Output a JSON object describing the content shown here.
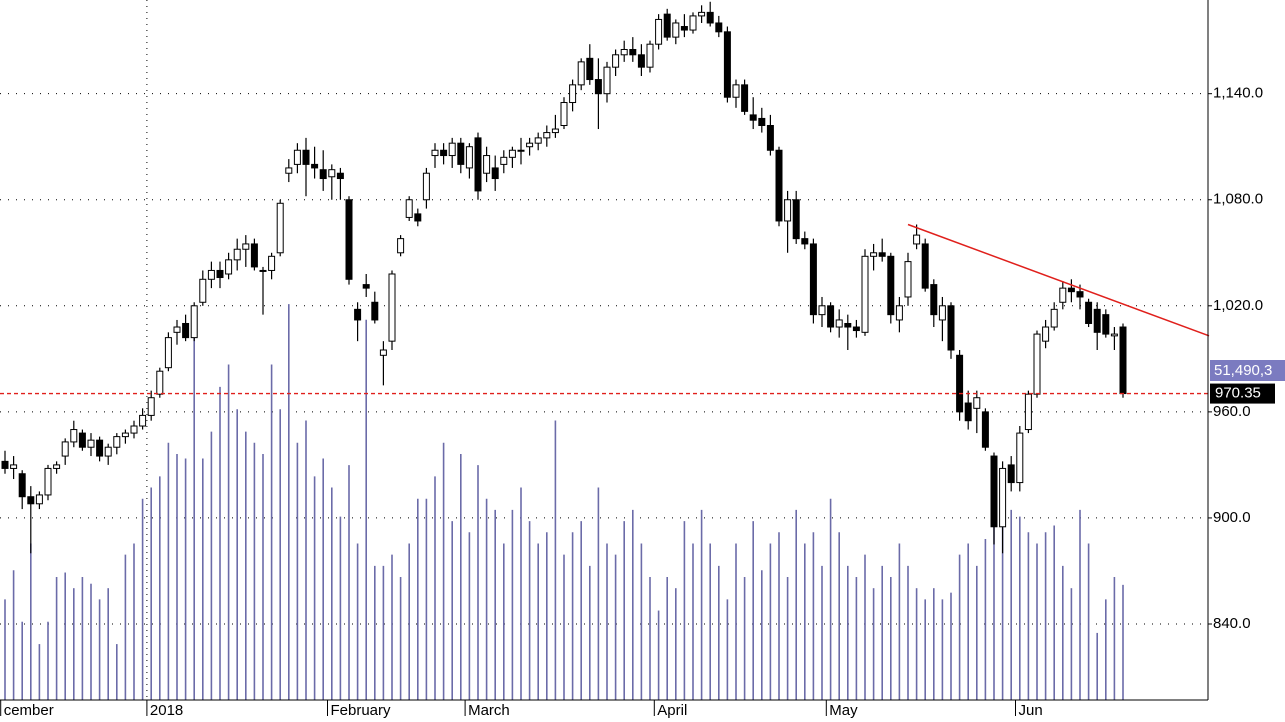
{
  "chart_data": {
    "type": "candlestick",
    "categories": [
      "cember",
      null,
      null,
      null,
      null,
      null,
      null,
      null,
      null,
      null,
      null,
      null,
      null,
      null,
      null,
      null,
      null,
      "2018",
      null,
      null,
      null,
      null,
      null,
      null,
      null,
      null,
      null,
      null,
      null,
      null,
      null,
      null,
      null,
      null,
      null,
      null,
      null,
      null,
      "February",
      null,
      null,
      null,
      null,
      null,
      null,
      null,
      null,
      null,
      null,
      null,
      null,
      null,
      null,
      null,
      "March",
      null,
      null,
      null,
      null,
      null,
      null,
      null,
      null,
      null,
      null,
      null,
      null,
      null,
      null,
      null,
      null,
      null,
      null,
      null,
      null,
      null,
      "April",
      null,
      null,
      null,
      null,
      null,
      null,
      null,
      null,
      null,
      null,
      null,
      null,
      null,
      null,
      null,
      null,
      null,
      null,
      null,
      "May",
      null,
      null,
      null,
      null,
      null,
      null,
      null,
      null,
      null,
      null,
      null,
      null,
      null,
      null,
      null,
      null,
      null,
      null,
      null,
      null,
      null,
      "Jun",
      null,
      null,
      null,
      null,
      null,
      null,
      null,
      null,
      null,
      null,
      null,
      null
    ],
    "ohlc": [
      [
        932,
        938,
        925,
        928
      ],
      [
        928,
        935,
        922,
        930
      ],
      [
        925,
        927,
        905,
        912
      ],
      [
        912,
        918,
        880,
        908
      ],
      [
        908,
        915,
        905,
        913
      ],
      [
        913,
        930,
        910,
        928
      ],
      [
        928,
        932,
        925,
        930
      ],
      [
        935,
        945,
        930,
        943
      ],
      [
        943,
        955,
        940,
        950
      ],
      [
        948,
        950,
        938,
        940
      ],
      [
        940,
        948,
        935,
        944
      ],
      [
        944,
        946,
        932,
        935
      ],
      [
        935,
        942,
        930,
        940
      ],
      [
        940,
        948,
        936,
        946
      ],
      [
        946,
        950,
        942,
        948
      ],
      [
        948,
        955,
        945,
        952
      ],
      [
        952,
        962,
        950,
        958
      ],
      [
        958,
        972,
        955,
        968
      ],
      [
        970,
        985,
        968,
        983
      ],
      [
        985,
        1005,
        983,
        1002
      ],
      [
        1005,
        1012,
        998,
        1008
      ],
      [
        1010,
        1015,
        1000,
        1002
      ],
      [
        1002,
        1022,
        1000,
        1020
      ],
      [
        1022,
        1040,
        1020,
        1035
      ],
      [
        1035,
        1045,
        1030,
        1040
      ],
      [
        1040,
        1045,
        1030,
        1036
      ],
      [
        1038,
        1050,
        1035,
        1046
      ],
      [
        1046,
        1058,
        1040,
        1052
      ],
      [
        1052,
        1060,
        1042,
        1055
      ],
      [
        1055,
        1058,
        1040,
        1042
      ],
      [
        1040,
        1042,
        1015,
        1040
      ],
      [
        1040,
        1050,
        1035,
        1048
      ],
      [
        1050,
        1080,
        1048,
        1078
      ],
      [
        1095,
        1103,
        1090,
        1098
      ],
      [
        1100,
        1112,
        1095,
        1108
      ],
      [
        1108,
        1115,
        1082,
        1100
      ],
      [
        1100,
        1110,
        1092,
        1098
      ],
      [
        1097,
        1108,
        1085,
        1092
      ],
      [
        1093,
        1100,
        1080,
        1097
      ],
      [
        1095,
        1098,
        1080,
        1092
      ],
      [
        1080,
        1082,
        1032,
        1035
      ],
      [
        1018,
        1022,
        1000,
        1012
      ],
      [
        1032,
        1038,
        1025,
        1030
      ],
      [
        1022,
        1028,
        1010,
        1012
      ],
      [
        992,
        1000,
        975,
        995
      ],
      [
        1000,
        1040,
        995,
        1038
      ],
      [
        1050,
        1060,
        1048,
        1058
      ],
      [
        1070,
        1082,
        1068,
        1080
      ],
      [
        1072,
        1075,
        1065,
        1068
      ],
      [
        1080,
        1098,
        1075,
        1095
      ],
      [
        1105,
        1112,
        1098,
        1108
      ],
      [
        1108,
        1112,
        1100,
        1105
      ],
      [
        1105,
        1115,
        1098,
        1112
      ],
      [
        1112,
        1115,
        1095,
        1100
      ],
      [
        1098,
        1112,
        1092,
        1110
      ],
      [
        1115,
        1118,
        1080,
        1085
      ],
      [
        1095,
        1110,
        1090,
        1105
      ],
      [
        1098,
        1105,
        1085,
        1092
      ],
      [
        1100,
        1108,
        1095,
        1104
      ],
      [
        1104,
        1110,
        1098,
        1108
      ],
      [
        1108,
        1115,
        1100,
        1108
      ],
      [
        1110,
        1115,
        1105,
        1112
      ],
      [
        1112,
        1118,
        1108,
        1115
      ],
      [
        1115,
        1122,
        1110,
        1118
      ],
      [
        1118,
        1128,
        1115,
        1120
      ],
      [
        1122,
        1138,
        1120,
        1135
      ],
      [
        1135,
        1148,
        1130,
        1145
      ],
      [
        1145,
        1160,
        1142,
        1158
      ],
      [
        1160,
        1168,
        1145,
        1148
      ],
      [
        1148,
        1160,
        1120,
        1140
      ],
      [
        1140,
        1158,
        1135,
        1155
      ],
      [
        1155,
        1165,
        1150,
        1162
      ],
      [
        1162,
        1170,
        1158,
        1165
      ],
      [
        1165,
        1172,
        1158,
        1162
      ],
      [
        1162,
        1168,
        1150,
        1155
      ],
      [
        1155,
        1170,
        1152,
        1168
      ],
      [
        1168,
        1185,
        1165,
        1182
      ],
      [
        1185,
        1188,
        1170,
        1172
      ],
      [
        1172,
        1182,
        1168,
        1180
      ],
      [
        1178,
        1185,
        1172,
        1176
      ],
      [
        1176,
        1186,
        1174,
        1184
      ],
      [
        1184,
        1190,
        1180,
        1186
      ],
      [
        1186,
        1192,
        1178,
        1180
      ],
      [
        1180,
        1184,
        1172,
        1175
      ],
      [
        1175,
        1178,
        1135,
        1138
      ],
      [
        1138,
        1148,
        1132,
        1145
      ],
      [
        1145,
        1148,
        1128,
        1130
      ],
      [
        1128,
        1138,
        1120,
        1125
      ],
      [
        1126,
        1132,
        1118,
        1122
      ],
      [
        1122,
        1128,
        1105,
        1108
      ],
      [
        1108,
        1110,
        1065,
        1068
      ],
      [
        1068,
        1085,
        1050,
        1080
      ],
      [
        1080,
        1085,
        1055,
        1058
      ],
      [
        1058,
        1062,
        1052,
        1055
      ],
      [
        1055,
        1058,
        1010,
        1015
      ],
      [
        1015,
        1025,
        1008,
        1020
      ],
      [
        1020,
        1022,
        1005,
        1008
      ],
      [
        1008,
        1018,
        1002,
        1012
      ],
      [
        1010,
        1015,
        995,
        1008
      ],
      [
        1008,
        1012,
        1002,
        1006
      ],
      [
        1005,
        1052,
        1003,
        1048
      ],
      [
        1048,
        1055,
        1040,
        1050
      ],
      [
        1050,
        1058,
        1045,
        1048
      ],
      [
        1048,
        1050,
        1010,
        1015
      ],
      [
        1012,
        1025,
        1005,
        1020
      ],
      [
        1025,
        1050,
        1020,
        1045
      ],
      [
        1055,
        1066,
        1052,
        1060
      ],
      [
        1055,
        1058,
        1028,
        1030
      ],
      [
        1032,
        1035,
        1008,
        1015
      ],
      [
        1012,
        1025,
        1000,
        1020
      ],
      [
        1020,
        1022,
        990,
        995
      ],
      [
        992,
        995,
        955,
        960
      ],
      [
        965,
        972,
        950,
        955
      ],
      [
        962,
        972,
        948,
        968
      ],
      [
        960,
        962,
        938,
        940
      ],
      [
        935,
        937,
        885,
        895
      ],
      [
        895,
        932,
        880,
        928
      ],
      [
        930,
        935,
        915,
        920
      ],
      [
        920,
        952,
        915,
        948
      ],
      [
        950,
        972,
        948,
        970
      ],
      [
        970,
        1006,
        968,
        1004
      ],
      [
        1000,
        1012,
        996,
        1008
      ],
      [
        1008,
        1022,
        1006,
        1018
      ],
      [
        1022,
        1034,
        1018,
        1030
      ],
      [
        1030,
        1035,
        1022,
        1028
      ],
      [
        1028,
        1032,
        1018,
        1025
      ],
      [
        1022,
        1024,
        1008,
        1010
      ],
      [
        1018,
        1022,
        995,
        1005
      ],
      [
        1015,
        1018,
        1002,
        1004
      ],
      [
        1003,
        1008,
        995,
        1004
      ],
      [
        1008,
        1010,
        968,
        970.35
      ]
    ],
    "volume": [
      45,
      58,
      35,
      70,
      25,
      35,
      55,
      57,
      50,
      55,
      52,
      45,
      50,
      25,
      65,
      70,
      90,
      95,
      100,
      115,
      110,
      108,
      165,
      108,
      120,
      140,
      150,
      130,
      120,
      115,
      110,
      150,
      130,
      177,
      115,
      125,
      100,
      108,
      95,
      82,
      105,
      70,
      170,
      60,
      60,
      65,
      55,
      70,
      90,
      90,
      100,
      115,
      80,
      110,
      75,
      105,
      90,
      85,
      70,
      85,
      95,
      80,
      70,
      75,
      125,
      65,
      75,
      80,
      60,
      95,
      70,
      65,
      80,
      85,
      70,
      55,
      40,
      55,
      50,
      80,
      70,
      85,
      70,
      60,
      45,
      70,
      55,
      80,
      58,
      70,
      75,
      55,
      85,
      70,
      75,
      60,
      90,
      75,
      60,
      55,
      65,
      50,
      60,
      55,
      70,
      60,
      50,
      45,
      50,
      45,
      48,
      65,
      70,
      60,
      72,
      88,
      80,
      85,
      82,
      75,
      70,
      75,
      78,
      60,
      50,
      85,
      70,
      30,
      45,
      55,
      51.49
    ],
    "volume_color": "#6b6ba8",
    "volume_ylim": [
      0,
      313
    ],
    "volume_label": "51,490,3",
    "ylim": [
      797,
      1193
    ],
    "yticks": [
      {
        "value": 840,
        "label": "840.0"
      },
      {
        "value": 900,
        "label": "900.0"
      },
      {
        "value": 960,
        "label": "960.0"
      },
      {
        "value": 1020,
        "label": "1,020.0"
      },
      {
        "value": 1080,
        "label": "1,080.0"
      },
      {
        "value": 1140,
        "label": "1,140.0"
      }
    ],
    "grid": true,
    "trendline": {
      "color": "#e0201c",
      "start": [
        105,
        1066
      ],
      "end": [
        140,
        1003
      ]
    },
    "last_line_color": "#e0201c"
  }
}
